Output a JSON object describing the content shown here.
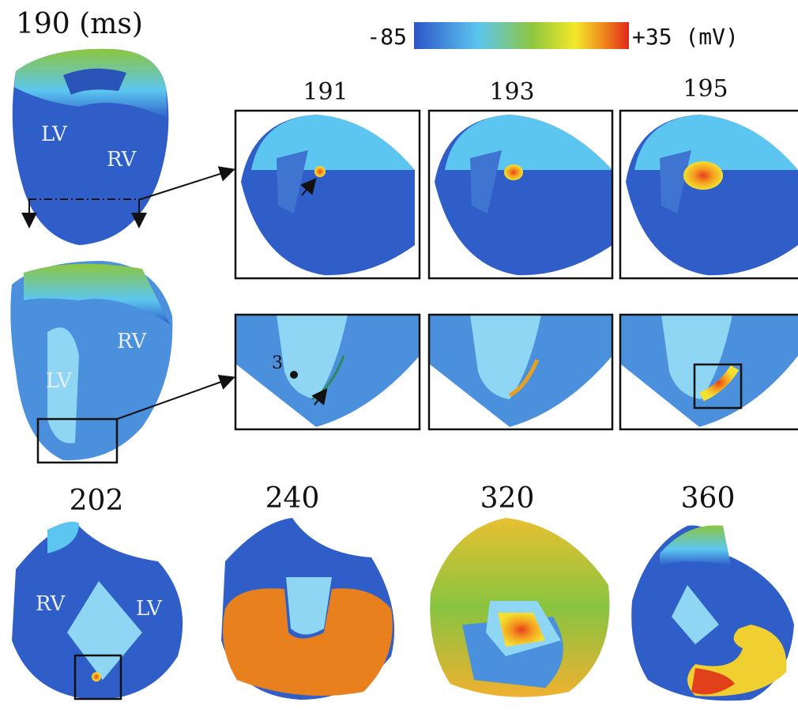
{
  "colorbar": {
    "min_label": "-85",
    "max_label": "+35 (mV)"
  },
  "top_panel": {
    "time_label": "190 (ms)",
    "labels": [
      "LV",
      "RV"
    ]
  },
  "middle_panel": {
    "labels": [
      "RV",
      "LV"
    ]
  },
  "zoom_times": [
    "191",
    "193",
    "195"
  ],
  "point_label": "3",
  "bottom_row": {
    "time_labels": [
      "202",
      "240",
      "320",
      "360"
    ],
    "labels": [
      "RV",
      "LV"
    ]
  }
}
